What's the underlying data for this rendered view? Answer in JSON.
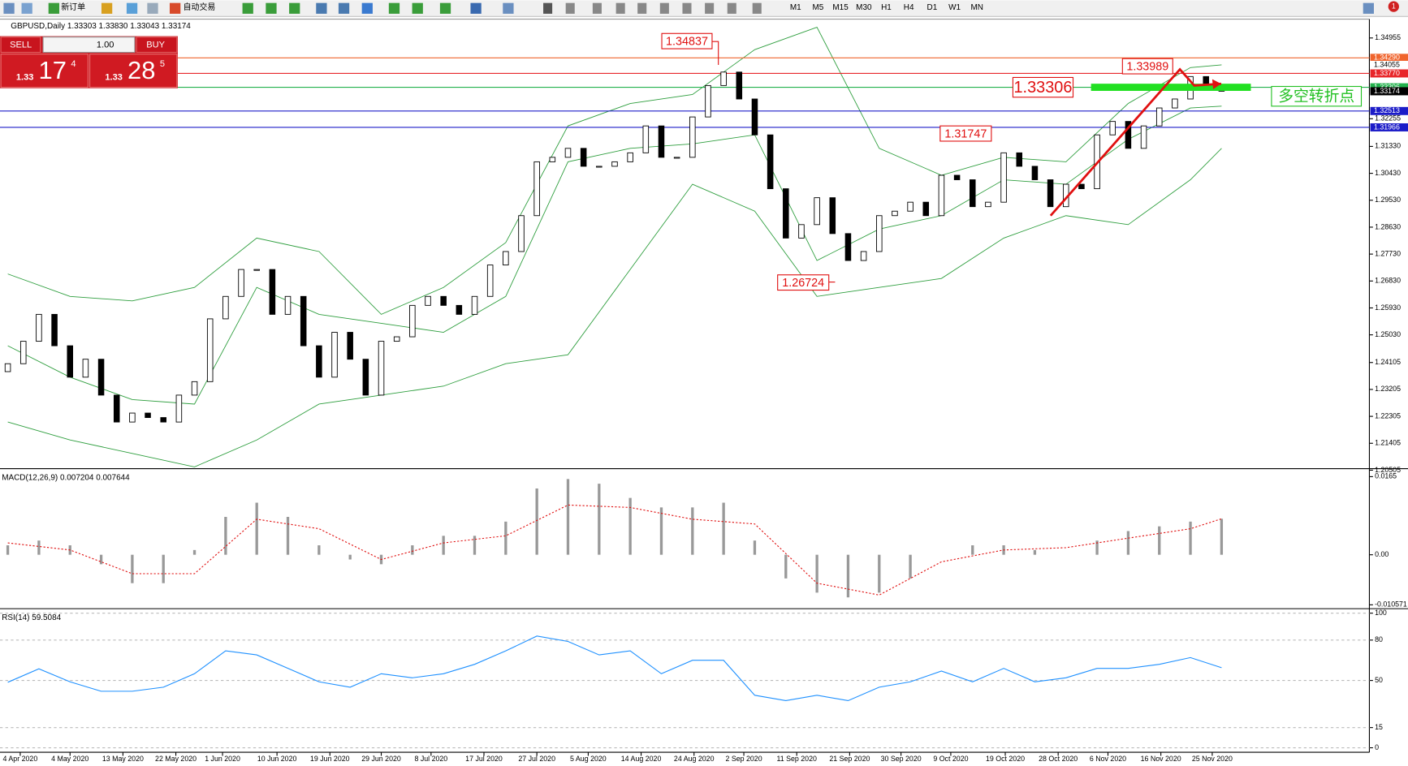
{
  "toolbar": {
    "new_order": "新订单",
    "auto_trading": "自动交易",
    "timeframes": [
      "M1",
      "M5",
      "M15",
      "M30",
      "H1",
      "H4",
      "D1",
      "W1",
      "MN"
    ],
    "notification_count": "1"
  },
  "trade_panel": {
    "sell": "SELL",
    "buy": "BUY",
    "lots": "1.00",
    "bid_big": "1.33",
    "bid_pips": "17",
    "bid_frac": "4",
    "ask_big": "1.33",
    "ask_pips": "28",
    "ask_frac": "5"
  },
  "chart_data": [
    {
      "type": "candlestick",
      "title": "GBPUSD,Daily  1.33303 1.33830 1.33043 1.33174",
      "open": [
        1.238,
        1.24065,
        1.24815,
        1.25715,
        1.24665,
        1.23615,
        1.24215,
        1.23015,
        1.22115,
        1.22415,
        1.22265,
        1.22115,
        1.23015,
        1.23465,
        1.25565,
        1.26315,
        1.27215,
        1.27215,
        1.25715,
        1.26315,
        1.24665,
        1.23615,
        1.25115,
        1.24215,
        1.23015,
        1.24815,
        1.24965,
        1.26015,
        1.26315,
        1.26015,
        1.25715,
        1.26315,
        1.27365,
        1.27815,
        1.29015,
        1.30815,
        1.30965,
        1.31265,
        1.30665,
        1.30665,
        1.30815,
        1.31115,
        1.32015,
        1.30965,
        1.30965,
        1.32315,
        1.33365,
        1.33815,
        1.32915,
        1.31715,
        1.29915,
        1.28265,
        1.28715,
        1.29615,
        1.28415,
        1.27515,
        1.27815,
        1.29015,
        1.29165,
        1.29465,
        1.29015,
        1.30365,
        1.30215,
        1.29315,
        1.29465,
        1.31115,
        1.30665,
        1.30215,
        1.29315,
        1.30065,
        1.29915,
        1.31715,
        1.32165,
        1.31265,
        1.32015,
        1.32615,
        1.32915,
        1.33665,
        1.33303
      ],
      "close": [
        1.24065,
        1.24815,
        1.25715,
        1.24665,
        1.23615,
        1.24215,
        1.23015,
        1.22115,
        1.22415,
        1.22265,
        1.22115,
        1.23015,
        1.23465,
        1.25565,
        1.26315,
        1.27215,
        1.27215,
        1.25715,
        1.26315,
        1.24665,
        1.23615,
        1.25115,
        1.24215,
        1.23015,
        1.24815,
        1.24965,
        1.26015,
        1.26315,
        1.26015,
        1.25715,
        1.26315,
        1.27365,
        1.27815,
        1.29015,
        1.30815,
        1.30965,
        1.31265,
        1.30665,
        1.30665,
        1.30815,
        1.31115,
        1.32015,
        1.30965,
        1.30965,
        1.32315,
        1.33365,
        1.33815,
        1.32915,
        1.31715,
        1.29915,
        1.28265,
        1.28715,
        1.29615,
        1.28415,
        1.27515,
        1.27815,
        1.29015,
        1.29165,
        1.29465,
        1.29015,
        1.30365,
        1.30215,
        1.29315,
        1.29465,
        1.31115,
        1.30665,
        1.30215,
        1.29315,
        1.30065,
        1.29915,
        1.31715,
        1.32165,
        1.31265,
        1.32015,
        1.32615,
        1.32915,
        1.33665,
        1.33215,
        1.33174
      ],
      "bands": {
        "color": "#2e9e3e",
        "x": [
          0,
          4,
          8,
          12,
          16,
          20,
          24,
          28,
          32,
          36,
          40,
          44,
          48,
          52,
          56,
          60,
          64,
          68,
          72,
          76,
          78
        ],
        "upper": [
          1.27065,
          1.26315,
          1.26165,
          1.26615,
          1.28265,
          1.27815,
          1.25715,
          1.26615,
          1.28115,
          1.32015,
          1.32765,
          1.33065,
          1.34565,
          1.35315,
          1.31265,
          1.30365,
          1.30965,
          1.30815,
          1.32765,
          1.33965,
          1.34055
        ],
        "middle": [
          1.24665,
          1.23615,
          1.22865,
          1.22715,
          1.26615,
          1.25715,
          1.25415,
          1.25115,
          1.26315,
          1.30815,
          1.31265,
          1.31415,
          1.31715,
          1.27515,
          1.28565,
          1.29015,
          1.30215,
          1.30065,
          1.31565,
          1.32615,
          1.32675
        ],
        "lower": [
          1.22115,
          1.21515,
          1.21065,
          1.20615,
          1.21515,
          1.22715,
          1.23015,
          1.23315,
          1.24065,
          1.24365,
          1.27215,
          1.30065,
          1.29165,
          1.26315,
          1.26615,
          1.26915,
          1.28265,
          1.29015,
          1.28715,
          1.30215,
          1.31265
        ]
      },
      "xlim": [
        -0.5,
        87.5
      ],
      "ylim": [
        1.20585,
        1.35555
      ],
      "yticks": [
        {
          "value": 1.34955,
          "label": "1.34955"
        },
        {
          "value": 1.32255,
          "label": "1.32255"
        },
        {
          "value": 1.3133,
          "label": "1.31330"
        },
        {
          "value": 1.3043,
          "label": "1.30430"
        },
        {
          "value": 1.2953,
          "label": "1.29530"
        },
        {
          "value": 1.2863,
          "label": "1.28630"
        },
        {
          "value": 1.2773,
          "label": "1.27730"
        },
        {
          "value": 1.2683,
          "label": "1.26830"
        },
        {
          "value": 1.2593,
          "label": "1.25930"
        },
        {
          "value": 1.2503,
          "label": "1.25030"
        },
        {
          "value": 1.24105,
          "label": "1.24105"
        },
        {
          "value": 1.23205,
          "label": "1.23205"
        },
        {
          "value": 1.22305,
          "label": "1.22305"
        },
        {
          "value": 1.21405,
          "label": "1.21405"
        },
        {
          "value": 1.20505,
          "label": "1.20505"
        }
      ],
      "xticks": [
        {
          "value": 0.8,
          "label": "4 Apr 2020"
        },
        {
          "value": 4.0,
          "label": "4 May 2020"
        },
        {
          "value": 7.4,
          "label": "13 May 2020"
        },
        {
          "value": 10.8,
          "label": "22 May 2020"
        },
        {
          "value": 13.8,
          "label": "1 Jun 2020"
        },
        {
          "value": 17.3,
          "label": "10 Jun 2020"
        },
        {
          "value": 20.7,
          "label": "19 Jun 2020"
        },
        {
          "value": 24.0,
          "label": "29 Jun 2020"
        },
        {
          "value": 27.2,
          "label": "8 Jul 2020"
        },
        {
          "value": 30.6,
          "label": "17 Jul 2020"
        },
        {
          "value": 34.0,
          "label": "27 Jul 2020"
        },
        {
          "value": 37.3,
          "label": "5 Aug 2020"
        },
        {
          "value": 40.7,
          "label": "14 Aug 2020"
        },
        {
          "value": 44.1,
          "label": "24 Aug 2020"
        },
        {
          "value": 47.3,
          "label": "2 Sep 2020"
        },
        {
          "value": 50.7,
          "label": "11 Sep 2020"
        },
        {
          "value": 54.1,
          "label": "21 Sep 2020"
        },
        {
          "value": 57.4,
          "label": "30 Sep 2020"
        },
        {
          "value": 60.6,
          "label": "9 Oct 2020"
        },
        {
          "value": 64.1,
          "label": "19 Oct 2020"
        },
        {
          "value": 67.5,
          "label": "28 Oct 2020"
        },
        {
          "value": 70.7,
          "label": "6 Nov 2020"
        },
        {
          "value": 74.1,
          "label": "16 Nov 2020"
        },
        {
          "value": 77.4,
          "label": "25 Nov 2020"
        }
      ],
      "price_tags": [
        {
          "value": 1.3429,
          "label": "1.34290",
          "color": "#f0642d",
          "text_color": "#ffffff",
          "line": true
        },
        {
          "value": 1.34055,
          "label": "1.34055",
          "color": "#ffffff",
          "text_color": "#000000",
          "line": false
        },
        {
          "value": 1.3377,
          "label": "1.33770",
          "color": "#e8262a",
          "text_color": "#ffffff",
          "line": true
        },
        {
          "value": 1.33306,
          "label": "1.33306",
          "color": "#22b14c",
          "text_color": "#ffffff",
          "line": true
        },
        {
          "value": 1.33174,
          "label": "1.33174",
          "color": "#000000",
          "text_color": "#ffffff",
          "line": false
        },
        {
          "value": 1.32513,
          "label": "1.32513",
          "color": "#1c1cc8",
          "text_color": "#ffffff",
          "line": true
        },
        {
          "value": 1.31966,
          "label": "1.31966",
          "color": "#1c1cc8",
          "text_color": "#ffffff",
          "line": true
        }
      ],
      "annotations": [
        "1.34837",
        "1.33989",
        "1.33306",
        "1.31747",
        "1.26724",
        "多空转折点"
      ]
    },
    {
      "type": "macd",
      "title": "MACD(12,26,9) 0.007204 0.007644",
      "xlim": [
        -0.5,
        87.5
      ],
      "ylim": [
        -0.0112,
        0.0178
      ],
      "yticks": [
        0.0165,
        {
          "value": 0,
          "label": "0.00"
        },
        -0.010571
      ],
      "hist_x": [
        0,
        2,
        4,
        6,
        8,
        10,
        12,
        14,
        16,
        18,
        20,
        22,
        24,
        26,
        28,
        30,
        32,
        34,
        36,
        38,
        40,
        42,
        44,
        46,
        48,
        50,
        52,
        54,
        56,
        58,
        60,
        62,
        64,
        66,
        68,
        70,
        72,
        74,
        76,
        78
      ],
      "hist": [
        0.002,
        0.003,
        0.002,
        -0.002,
        -0.006,
        -0.006,
        0.001,
        0.008,
        0.011,
        0.008,
        0.002,
        -0.001,
        -0.002,
        0.002,
        0.004,
        0.004,
        0.007,
        0.014,
        0.016,
        0.015,
        0.012,
        0.01,
        0.01,
        0.011,
        0.003,
        -0.005,
        -0.008,
        -0.009,
        -0.008,
        -0.005,
        0.0,
        0.002,
        0.002,
        0.001,
        0.0,
        0.003,
        0.005,
        0.006,
        0.007,
        0.0076
      ],
      "signal_x": [
        0,
        4,
        8,
        12,
        16,
        20,
        24,
        28,
        32,
        36,
        40,
        44,
        48,
        52,
        56,
        60,
        64,
        68,
        72,
        76,
        78
      ],
      "signal": [
        0.0025,
        0.001,
        -0.004,
        -0.004,
        0.0075,
        0.0055,
        -0.001,
        0.0025,
        0.004,
        0.0105,
        0.01,
        0.0075,
        0.0065,
        -0.006,
        -0.0085,
        -0.0015,
        0.001,
        0.0015,
        0.0035,
        0.0055,
        0.0076
      ]
    },
    {
      "type": "line",
      "title": "RSI(14) 59.5084",
      "xlim": [
        -0.5,
        87.5
      ],
      "ylim": [
        -3.33,
        102
      ],
      "yticks": [
        100,
        80,
        50,
        15,
        0
      ],
      "color": "#1e90ff",
      "x": [
        0,
        2,
        4,
        6,
        8,
        10,
        12,
        14,
        16,
        18,
        20,
        22,
        24,
        26,
        28,
        30,
        32,
        34,
        36,
        38,
        40,
        42,
        44,
        46,
        48,
        50,
        52,
        54,
        56,
        58,
        60,
        62,
        64,
        66,
        68,
        70,
        72,
        74,
        76,
        78
      ],
      "values": [
        48.7,
        58.7,
        49,
        42,
        42,
        45,
        55,
        72,
        69,
        59,
        49,
        45,
        55,
        52,
        55,
        62,
        72,
        83,
        79,
        69,
        72,
        55,
        65,
        65,
        39,
        35,
        39,
        35,
        45,
        49,
        57,
        49,
        59,
        49,
        52,
        59,
        59,
        62,
        67,
        59.5
      ]
    }
  ]
}
